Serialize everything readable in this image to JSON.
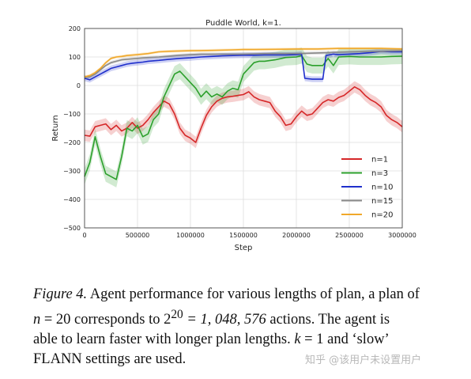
{
  "chart_data": {
    "type": "line",
    "title": "Puddle World, k=1.",
    "xlabel": "Step",
    "ylabel": "Return",
    "xlim": [
      0,
      3000000
    ],
    "ylim": [
      -500,
      200
    ],
    "xticks": [
      0,
      500000,
      1000000,
      1500000,
      2000000,
      2500000,
      3000000
    ],
    "yticks": [
      -500,
      -400,
      -300,
      -200,
      -100,
      0,
      100,
      200
    ],
    "xtick_labels": [
      "0",
      "500000",
      "1000000",
      "1500000",
      "2000000",
      "2500000",
      "3000000"
    ],
    "ytick_labels": [
      "−500",
      "−400",
      "−300",
      "−200",
      "−100",
      "0",
      "100",
      "200"
    ],
    "grid": true,
    "legend_position": "bottom-right",
    "series": [
      {
        "name": "n=1",
        "color": "#d62728",
        "band": 20,
        "x": [
          0,
          50000,
          100000,
          150000,
          200000,
          250000,
          300000,
          350000,
          400000,
          450000,
          500000,
          550000,
          600000,
          650000,
          700000,
          750000,
          800000,
          850000,
          900000,
          950000,
          1000000,
          1050000,
          1100000,
          1150000,
          1200000,
          1250000,
          1300000,
          1350000,
          1400000,
          1450000,
          1500000,
          1550000,
          1600000,
          1650000,
          1700000,
          1750000,
          1800000,
          1850000,
          1900000,
          1950000,
          2000000,
          2050000,
          2100000,
          2150000,
          2200000,
          2250000,
          2300000,
          2350000,
          2400000,
          2450000,
          2500000,
          2550000,
          2600000,
          2650000,
          2700000,
          2750000,
          2800000,
          2850000,
          2900000,
          2950000,
          3000000
        ],
        "y": [
          -175,
          -178,
          -145,
          -140,
          -135,
          -155,
          -140,
          -160,
          -150,
          -130,
          -150,
          -140,
          -120,
          -95,
          -75,
          -55,
          -65,
          -100,
          -150,
          -175,
          -185,
          -200,
          -150,
          -105,
          -75,
          -55,
          -45,
          -40,
          -38,
          -35,
          -32,
          -22,
          -40,
          -50,
          -55,
          -60,
          -90,
          -110,
          -140,
          -135,
          -110,
          -90,
          -105,
          -100,
          -80,
          -60,
          -50,
          -55,
          -42,
          -35,
          -20,
          -5,
          -15,
          -35,
          -50,
          -60,
          -75,
          -105,
          -120,
          -130,
          -145
        ]
      },
      {
        "name": "n=3",
        "color": "#2ca02c",
        "band": 28,
        "x": [
          0,
          50000,
          100000,
          150000,
          200000,
          250000,
          300000,
          350000,
          400000,
          450000,
          500000,
          550000,
          600000,
          650000,
          700000,
          750000,
          800000,
          850000,
          900000,
          950000,
          1000000,
          1050000,
          1100000,
          1150000,
          1200000,
          1250000,
          1300000,
          1350000,
          1400000,
          1450000,
          1500000,
          1550000,
          1600000,
          1650000,
          1700000,
          1800000,
          1900000,
          2000000,
          2050000,
          2100000,
          2150000,
          2200000,
          2250000,
          2300000,
          2350000,
          2400000,
          2500000,
          2600000,
          2700000,
          2800000,
          2900000,
          3000000
        ],
        "y": [
          -320,
          -270,
          -180,
          -250,
          -310,
          -320,
          -330,
          -250,
          -150,
          -160,
          -140,
          -180,
          -170,
          -120,
          -100,
          -40,
          0,
          40,
          50,
          30,
          10,
          -10,
          -40,
          -20,
          -40,
          -30,
          -40,
          -20,
          -10,
          -15,
          40,
          60,
          80,
          85,
          85,
          90,
          98,
          100,
          105,
          75,
          70,
          70,
          70,
          95,
          70,
          100,
          102,
          100,
          100,
          100,
          102,
          103
        ]
      },
      {
        "name": "n=10",
        "color": "#1f2fcc",
        "band": 10,
        "x": [
          0,
          50000,
          100000,
          150000,
          200000,
          250000,
          300000,
          350000,
          400000,
          450000,
          500000,
          550000,
          600000,
          700000,
          800000,
          900000,
          1000000,
          1100000,
          1200000,
          1300000,
          1400000,
          1500000,
          1600000,
          1700000,
          1800000,
          1900000,
          2000000,
          2050000,
          2080000,
          2150000,
          2200000,
          2250000,
          2280000,
          2350000,
          2400000,
          2500000,
          2600000,
          2700000,
          2800000,
          2900000,
          3000000
        ],
        "y": [
          25,
          20,
          30,
          40,
          50,
          60,
          65,
          70,
          75,
          78,
          80,
          82,
          85,
          88,
          92,
          95,
          97,
          100,
          102,
          104,
          105,
          106,
          106,
          107,
          107,
          107,
          108,
          110,
          25,
          22,
          22,
          22,
          105,
          110,
          108,
          110,
          112,
          115,
          120,
          118,
          118
        ]
      },
      {
        "name": "n=15",
        "color": "#888888",
        "band": 6,
        "x": [
          0,
          50000,
          100000,
          150000,
          200000,
          250000,
          300000,
          350000,
          400000,
          500000,
          600000,
          700000,
          800000,
          900000,
          1000000,
          1100000,
          1200000,
          1300000,
          1400000,
          1500000,
          1700000,
          2000000,
          2300000,
          2500000,
          2800000,
          3000000
        ],
        "y": [
          28,
          30,
          40,
          55,
          70,
          80,
          85,
          90,
          92,
          95,
          98,
          100,
          103,
          106,
          108,
          110,
          110,
          110,
          110,
          110,
          112,
          112,
          115,
          118,
          120,
          122
        ]
      },
      {
        "name": "n=20",
        "color": "#f0a82a",
        "band": 5,
        "x": [
          0,
          50000,
          100000,
          150000,
          200000,
          250000,
          300000,
          350000,
          400000,
          500000,
          600000,
          700000,
          800000,
          900000,
          1000000,
          1200000,
          1400000,
          1500000,
          1600000,
          1800000,
          2000000,
          2200000,
          2400000,
          2600000,
          2800000,
          3000000
        ],
        "y": [
          30,
          35,
          45,
          60,
          80,
          95,
          100,
          102,
          105,
          108,
          112,
          118,
          120,
          121,
          122,
          123,
          125,
          126,
          126,
          127,
          128,
          128,
          130,
          130,
          130,
          128
        ]
      }
    ]
  },
  "caption": {
    "figure_label": "Figure 4.",
    "line1_rest": " Agent performance for various lengths of plan, a plan of",
    "line2_var": "n",
    "line2_eq": " = 20 corresponds to 2",
    "line2_sup": "20",
    "line2_value": " = 1, 048, 576",
    "line2_rest": " actions. The agent is",
    "line3_a": "able to learn faster with longer plan lengths. ",
    "line3_var": "k",
    "line3_eq": " = 1",
    "line3_b": " and ‘slow’",
    "line4": "FLANN settings are used."
  },
  "watermark": "知乎 @该用户未设置用户"
}
